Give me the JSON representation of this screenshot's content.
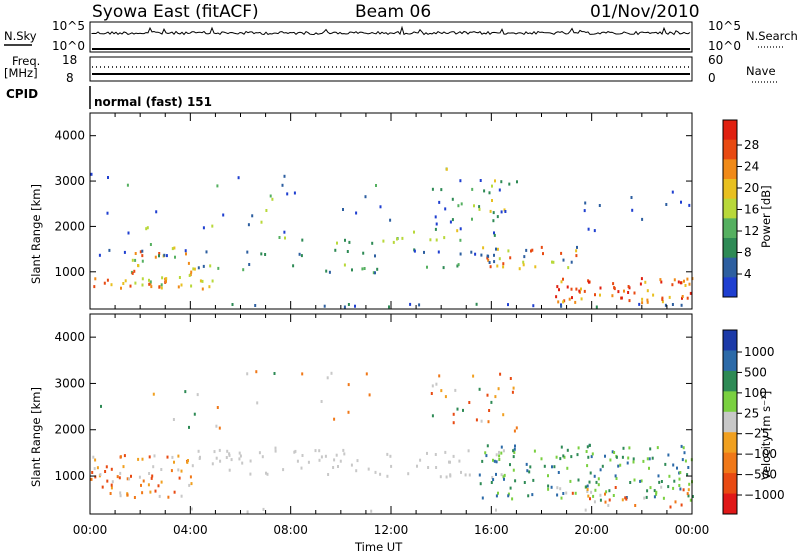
{
  "header": {
    "station": "Syowa East (fitACF)",
    "beam": "Beam 06",
    "date": "01/Nov/2010"
  },
  "top_panel": {
    "left_label": "N.Sky",
    "right_label": "N.Search",
    "left_ticks": [
      "10^5",
      "10^0"
    ],
    "right_ticks": [
      "10^5",
      "10^0"
    ]
  },
  "freq_panel": {
    "left_label_1": "Freq.",
    "left_label_2": "[MHz]",
    "right_label": "Nave",
    "left_ticks": [
      "18",
      "8"
    ],
    "right_ticks": [
      "60",
      "0"
    ]
  },
  "cpid": {
    "label": "CPID",
    "value": "normal (fast) 151"
  },
  "colors": {
    "power_scale": [
      "#1f3fd0",
      "#2d5fa0",
      "#2e8a55",
      "#55b060",
      "#b8d83a",
      "#e8c020",
      "#f08a18",
      "#e84a12",
      "#e02010"
    ],
    "velocity_scale": [
      "#1c3aa8",
      "#2c6aa8",
      "#2e8a55",
      "#7ad040",
      "#c8c8c8",
      "#f0a020",
      "#f07818",
      "#e84a12",
      "#e01818"
    ]
  },
  "chart_data": [
    {
      "type": "heatmap",
      "ylabel": "Slant Range [km]",
      "ylim": [
        180,
        4500
      ],
      "yticks": [
        "1000",
        "2000",
        "3000",
        "4000"
      ],
      "xticks": [
        "00:00",
        "04:00",
        "08:00",
        "12:00",
        "16:00",
        "20:00",
        "00:00"
      ],
      "colorbar": {
        "label": "Power [dB]",
        "ticks": [
          "4",
          "8",
          "12",
          "16",
          "20",
          "24",
          "28"
        ]
      }
    },
    {
      "type": "heatmap",
      "ylabel": "Slant Range [km]",
      "ylim": [
        180,
        4500
      ],
      "yticks": [
        "1000",
        "2000",
        "3000",
        "4000"
      ],
      "xticks": [
        "00:00",
        "04:00",
        "08:00",
        "12:00",
        "16:00",
        "20:00",
        "00:00"
      ],
      "xlabel": "Time UT",
      "colorbar": {
        "label": "Velocity [m s⁻¹]",
        "ticks": [
          "1000",
          "500",
          "100",
          "25",
          "−25",
          "−100",
          "−500",
          "−1000"
        ]
      }
    }
  ]
}
